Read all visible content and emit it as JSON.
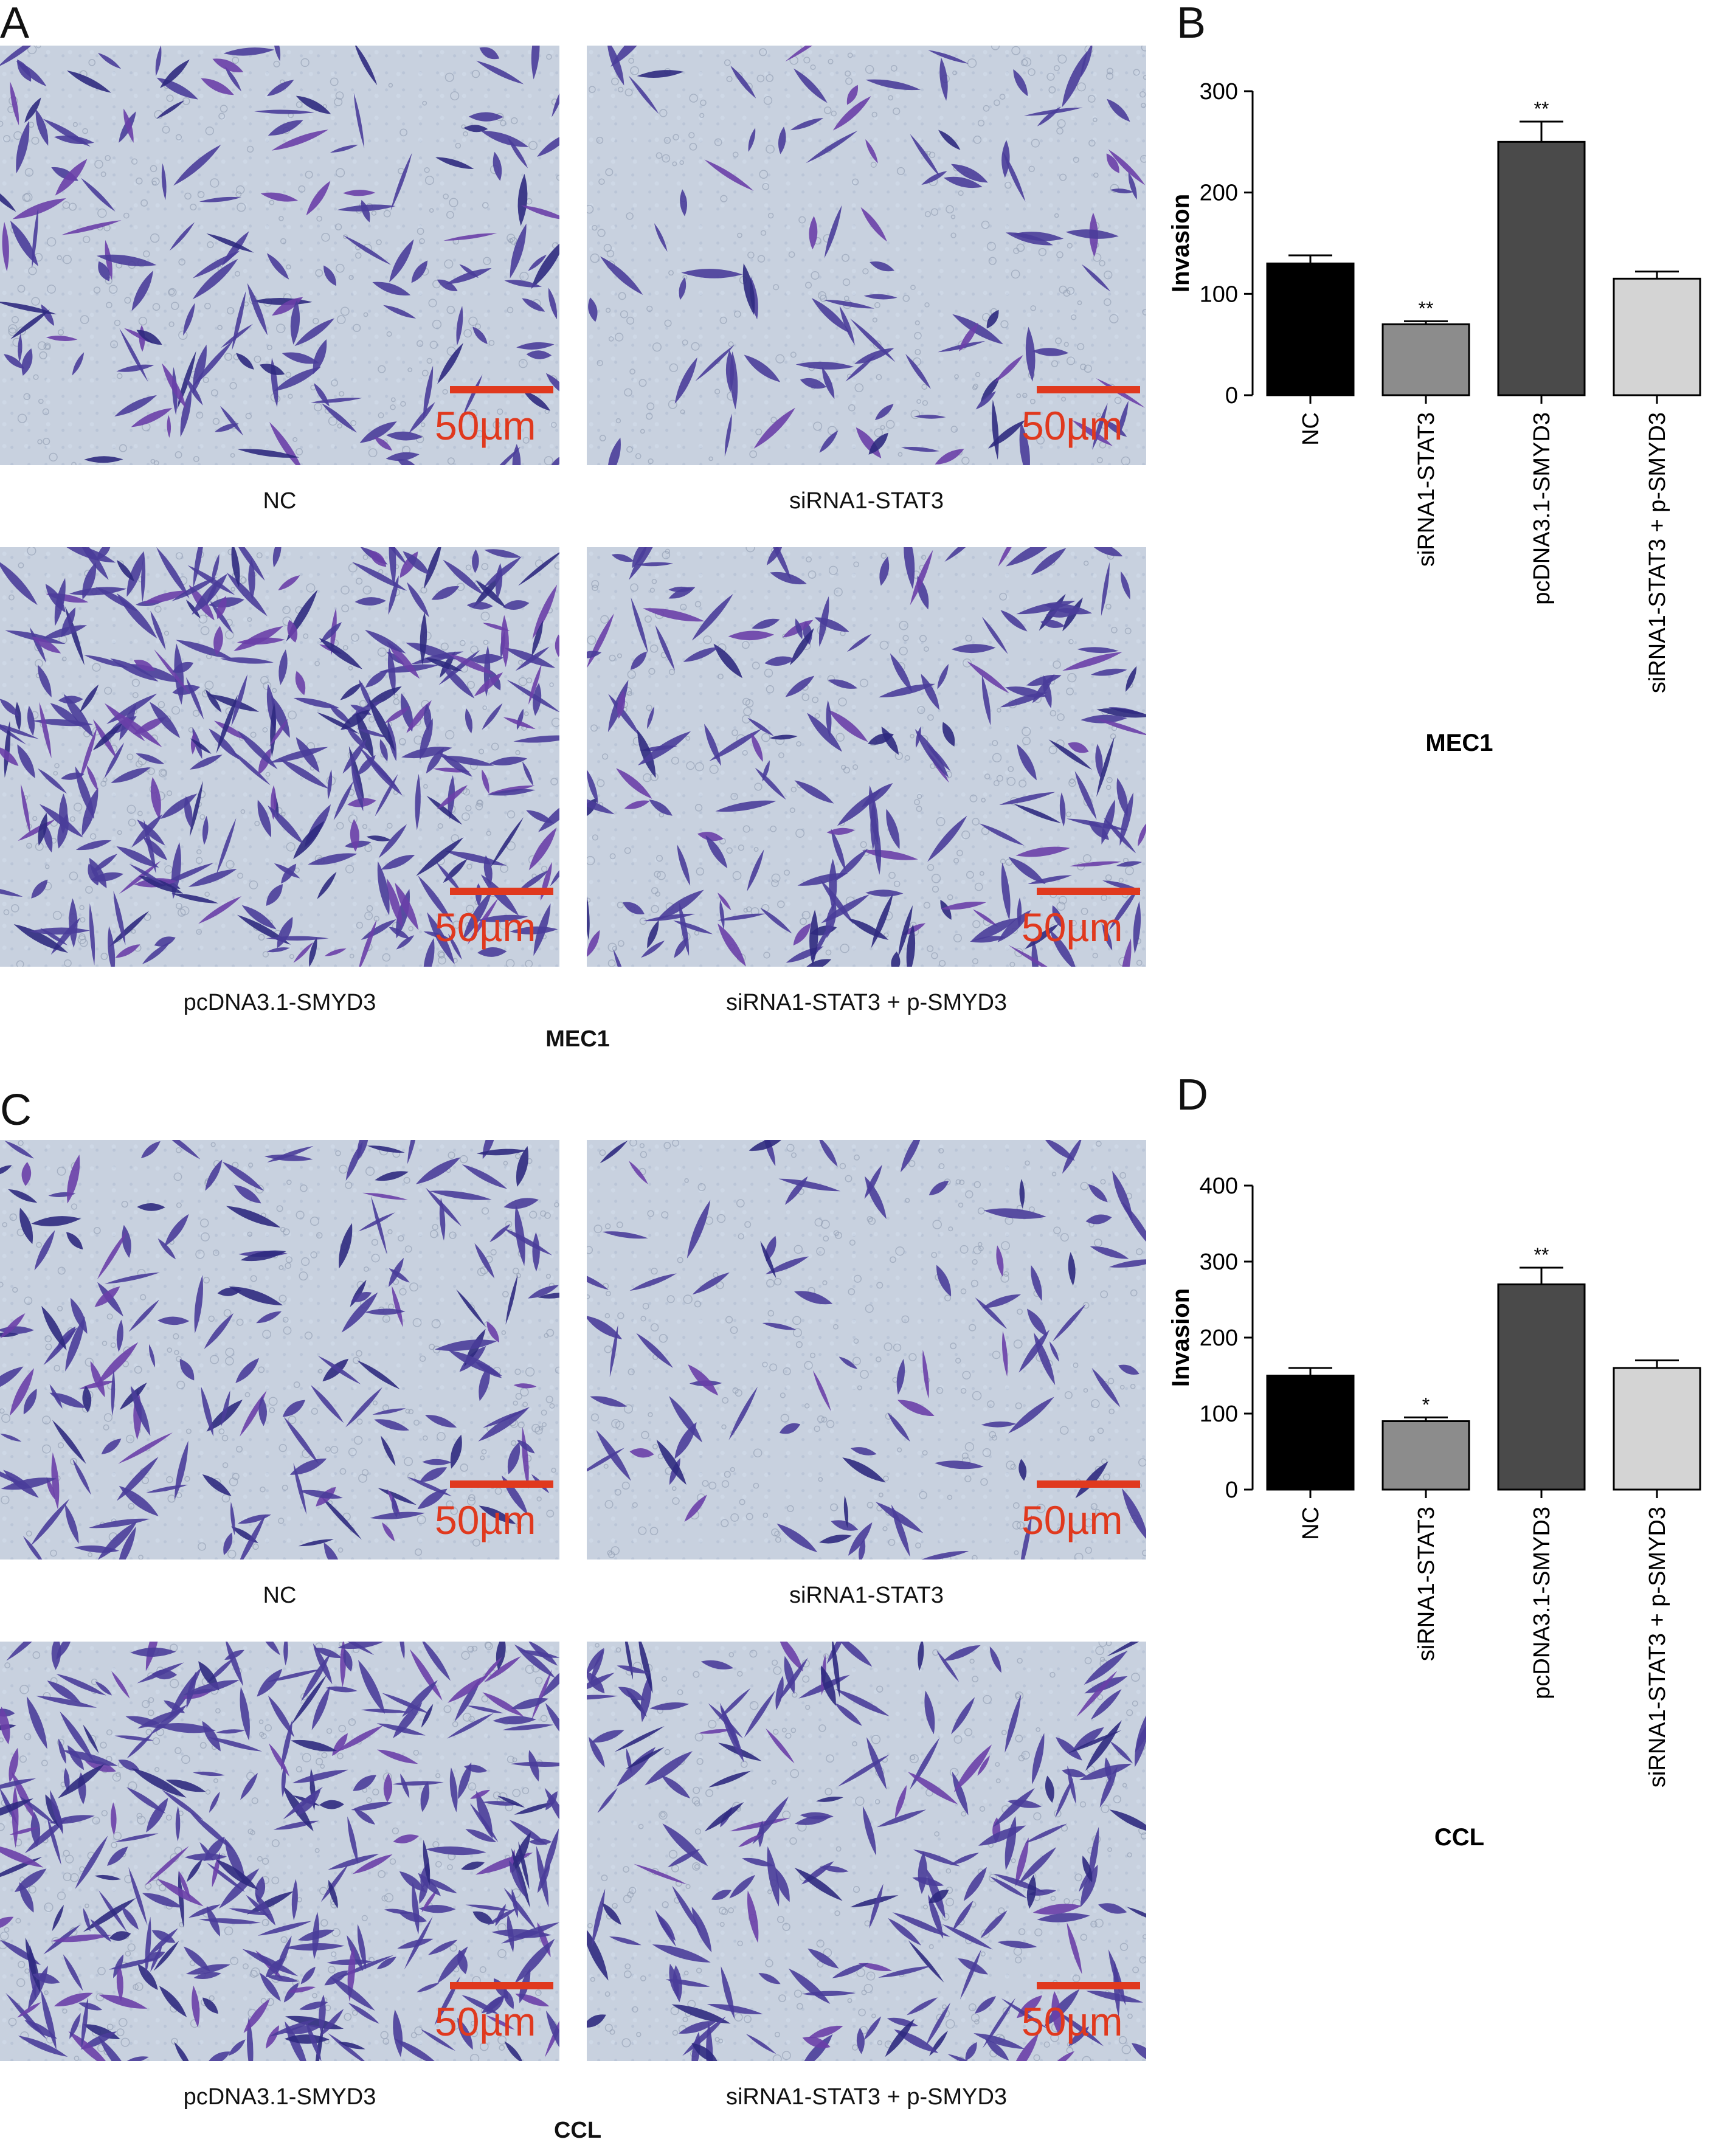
{
  "panels": {
    "A": {
      "letter": "A",
      "group": "MEC1",
      "images": [
        {
          "caption": "NC",
          "scale": "50µm",
          "density": 150,
          "seed": 11
        },
        {
          "caption": "siRNA1-STAT3",
          "scale": "50µm",
          "density": 95,
          "seed": 23
        },
        {
          "caption": "pcDNA3.1-SMYD3",
          "scale": "50µm",
          "density": 320,
          "seed": 37
        },
        {
          "caption": "siRNA1-STAT3 + p-SMYD3",
          "scale": "50µm",
          "density": 190,
          "seed": 49
        }
      ]
    },
    "C": {
      "letter": "C",
      "group": "CCL",
      "images": [
        {
          "caption": "NC",
          "scale": "50µm",
          "density": 170,
          "seed": 61
        },
        {
          "caption": "siRNA1-STAT3",
          "scale": "50µm",
          "density": 85,
          "seed": 73
        },
        {
          "caption": "pcDNA3.1-SMYD3",
          "scale": "50µm",
          "density": 330,
          "seed": 87
        },
        {
          "caption": "siRNA1-STAT3 + p-SMYD3",
          "scale": "50µm",
          "density": 200,
          "seed": 97
        }
      ]
    },
    "B": {
      "letter": "B"
    },
    "D": {
      "letter": "D"
    }
  },
  "chart_data": [
    {
      "type": "bar",
      "panel": "B",
      "categories": [
        "NC",
        "siRNA1-STAT3",
        "pcDNA3.1-SMYD3",
        "siRNA1-STAT3 + p-SMYD3"
      ],
      "values": [
        130,
        70,
        250,
        115
      ],
      "errors": [
        8,
        3,
        20,
        7
      ],
      "significance": [
        "",
        "**",
        "**",
        ""
      ],
      "colors": [
        "#000000",
        "#8c8c8c",
        "#4a4a4a",
        "#d4d4d4"
      ],
      "ylabel": "Invasion",
      "xlabel": "MEC1",
      "ylim": [
        0,
        300
      ],
      "yticks": [
        0,
        100,
        200,
        300
      ]
    },
    {
      "type": "bar",
      "panel": "D",
      "categories": [
        "NC",
        "siRNA1-STAT3",
        "pcDNA3.1-SMYD3",
        "siRNA1-STAT3 + p-SMYD3"
      ],
      "values": [
        150,
        90,
        270,
        160
      ],
      "errors": [
        10,
        5,
        22,
        10
      ],
      "significance": [
        "",
        "*",
        "**",
        ""
      ],
      "colors": [
        "#000000",
        "#8c8c8c",
        "#4a4a4a",
        "#d4d4d4"
      ],
      "ylabel": "Invasion",
      "xlabel": "CCL",
      "ylim": [
        0,
        400
      ],
      "yticks": [
        0,
        100,
        200,
        300,
        400
      ]
    }
  ]
}
